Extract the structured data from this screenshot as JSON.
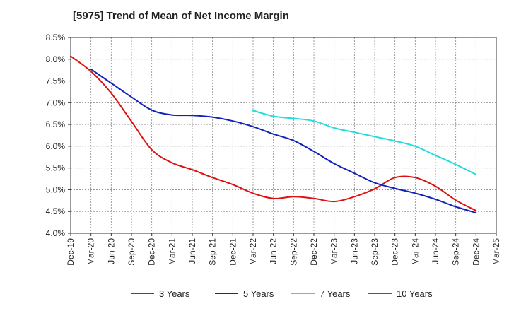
{
  "chart_data": {
    "type": "line",
    "title": "[5975]  Trend of Mean of Net Income Margin",
    "xlabel": "",
    "ylabel": "",
    "x_ticks": [
      "Dec-19",
      "Mar-20",
      "Jun-20",
      "Sep-20",
      "Dec-20",
      "Mar-21",
      "Jun-21",
      "Sep-21",
      "Dec-21",
      "Mar-22",
      "Jun-22",
      "Sep-22",
      "Dec-22",
      "Mar-23",
      "Jun-23",
      "Sep-23",
      "Dec-23",
      "Mar-24",
      "Jun-24",
      "Sep-24",
      "Dec-24",
      "Mar-25"
    ],
    "y_ticks": [
      "4.0%",
      "4.5%",
      "5.0%",
      "5.5%",
      "6.0%",
      "6.5%",
      "7.0%",
      "7.5%",
      "8.0%",
      "8.5%"
    ],
    "ylim": [
      4.0,
      8.5
    ],
    "grid": true,
    "legend_position": "bottom",
    "series": [
      {
        "name": "3 Years",
        "color": "#dd1111",
        "x": [
          "Dec-19",
          "Mar-20",
          "Jun-20",
          "Sep-20",
          "Dec-20",
          "Mar-21",
          "Jun-21",
          "Sep-21",
          "Dec-21",
          "Mar-22",
          "Jun-22",
          "Sep-22",
          "Dec-22",
          "Mar-23",
          "Jun-23",
          "Sep-23",
          "Dec-23",
          "Mar-24",
          "Jun-24",
          "Sep-24",
          "Dec-24"
        ],
        "values": [
          8.07,
          7.72,
          7.22,
          6.57,
          5.92,
          5.62,
          5.46,
          5.28,
          5.12,
          4.92,
          4.8,
          4.84,
          4.8,
          4.73,
          4.84,
          5.02,
          5.28,
          5.28,
          5.08,
          4.76,
          4.52
        ]
      },
      {
        "name": "5 Years",
        "color": "#1122bb",
        "x": [
          "Mar-20",
          "Jun-20",
          "Sep-20",
          "Dec-20",
          "Mar-21",
          "Jun-21",
          "Sep-21",
          "Dec-21",
          "Mar-22",
          "Jun-22",
          "Sep-22",
          "Dec-22",
          "Mar-23",
          "Jun-23",
          "Sep-23",
          "Dec-23",
          "Mar-24",
          "Jun-24",
          "Sep-24",
          "Dec-24"
        ],
        "values": [
          7.77,
          7.45,
          7.13,
          6.83,
          6.72,
          6.71,
          6.67,
          6.58,
          6.45,
          6.28,
          6.13,
          5.88,
          5.6,
          5.38,
          5.16,
          5.03,
          4.92,
          4.78,
          4.61,
          4.47
        ]
      },
      {
        "name": "7 Years",
        "color": "#22dddd",
        "x": [
          "Mar-22",
          "Jun-22",
          "Sep-22",
          "Dec-22",
          "Mar-23",
          "Jun-23",
          "Sep-23",
          "Dec-23",
          "Mar-24",
          "Jun-24",
          "Sep-24",
          "Dec-24"
        ],
        "values": [
          6.82,
          6.69,
          6.64,
          6.58,
          6.42,
          6.32,
          6.22,
          6.12,
          6.0,
          5.79,
          5.58,
          5.35
        ]
      },
      {
        "name": "10 Years",
        "color": "#118811",
        "x": [],
        "values": []
      }
    ]
  }
}
